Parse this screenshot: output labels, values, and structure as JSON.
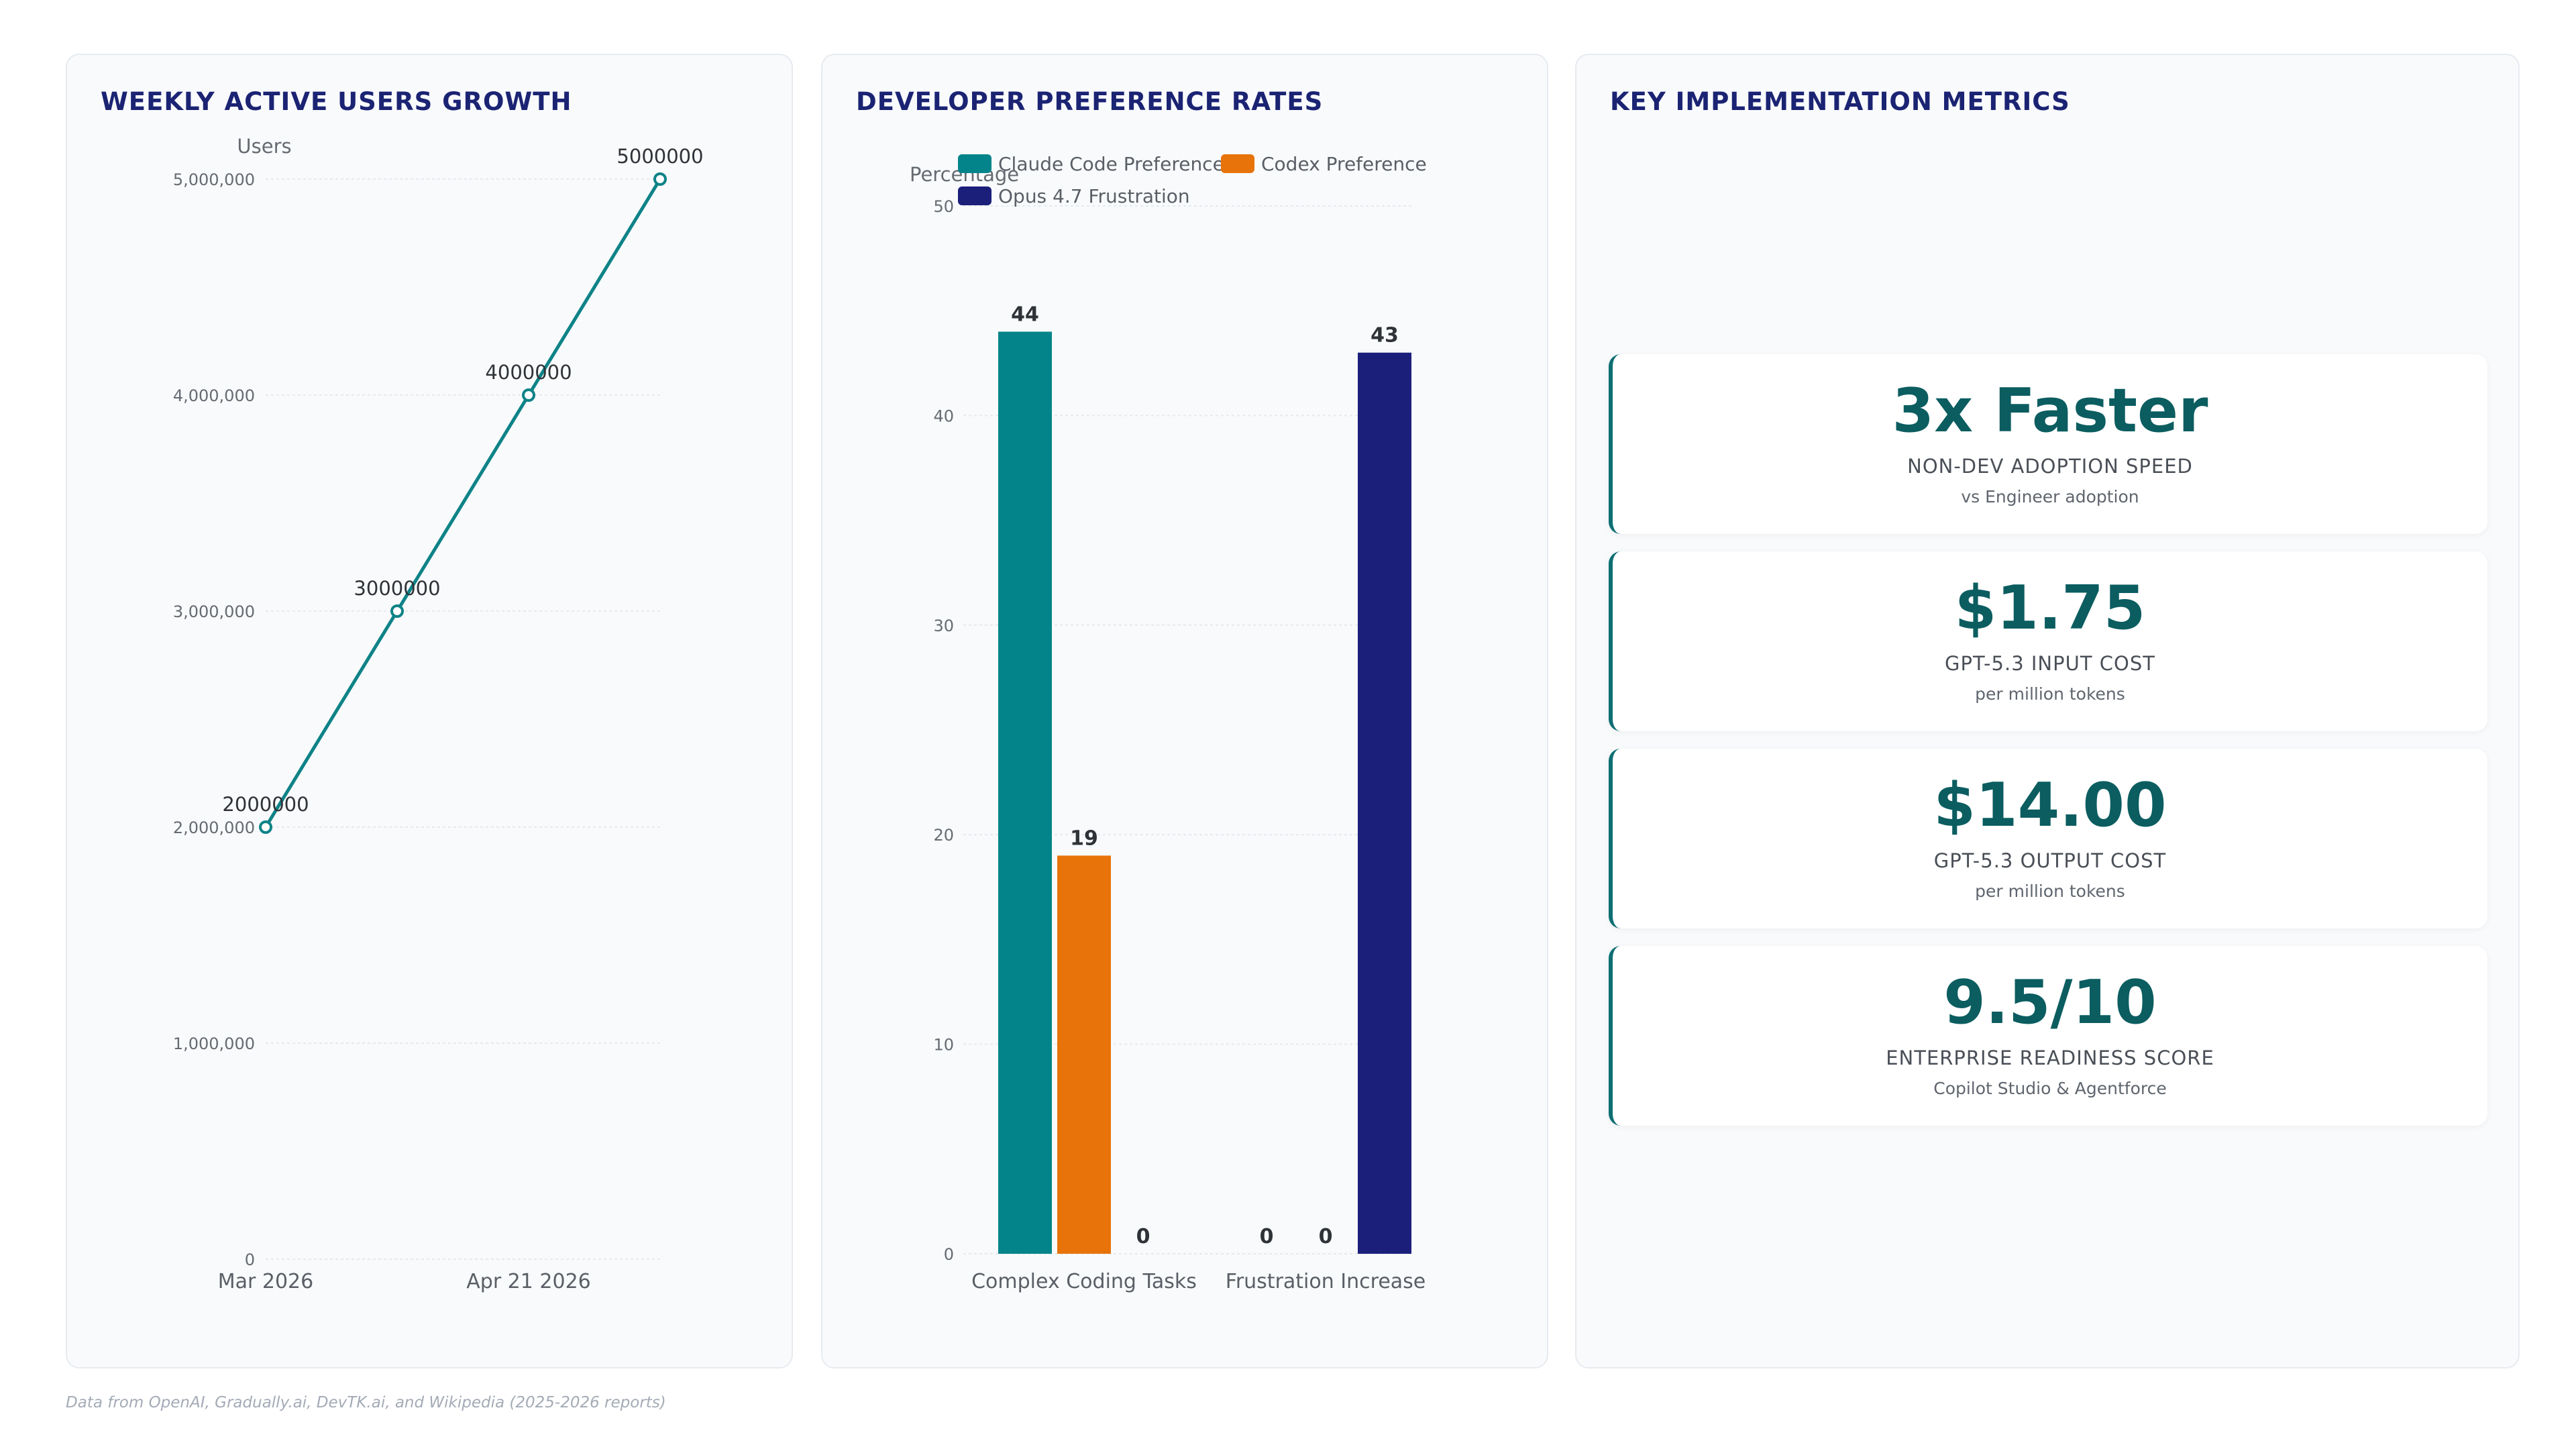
{
  "charts": {
    "wau": {
      "title": "WEEKLY ACTIVE USERS GROWTH"
    },
    "pref": {
      "title": "DEVELOPER PREFERENCE RATES"
    }
  },
  "chart_data": [
    {
      "type": "line",
      "title": "WEEKLY ACTIVE USERS GROWTH",
      "ylabel": "Users",
      "xlabel": "",
      "ylim": [
        0,
        5000000
      ],
      "yticks": [
        0,
        1000000,
        2000000,
        3000000,
        4000000,
        5000000
      ],
      "ytick_labels": [
        "0",
        "1,000,000",
        "2,000,000",
        "3,000,000",
        "4,000,000",
        "5,000,000"
      ],
      "x_tick_labels": [
        "Mar 2026",
        "Apr 21 2026"
      ],
      "series": [
        {
          "values": [
            2000000,
            3000000,
            4000000,
            5000000
          ],
          "point_labels": [
            "2000000",
            "3000000",
            "4000000",
            "5000000"
          ]
        }
      ],
      "grid": true,
      "color": "#0e8387"
    },
    {
      "type": "bar",
      "title": "DEVELOPER PREFERENCE RATES",
      "ylabel": "Percentage",
      "xlabel": "",
      "ylim": [
        0,
        50
      ],
      "yticks": [
        0,
        10,
        20,
        30,
        40,
        50
      ],
      "categories": [
        "Complex Coding Tasks",
        "Frustration Increase"
      ],
      "series": [
        {
          "name": "Claude Code Preference",
          "values": [
            44,
            0
          ],
          "color": "#03848a"
        },
        {
          "name": "Codex Preference",
          "values": [
            19,
            0
          ],
          "color": "#e8730a"
        },
        {
          "name": "Opus 4.7 Frustration",
          "values": [
            0,
            43
          ],
          "color": "#1b1f7a"
        }
      ],
      "legend": "top",
      "grid": true
    }
  ],
  "metrics": {
    "title": "KEY IMPLEMENTATION METRICS",
    "items": [
      {
        "value": "3x Faster",
        "label": "NON-DEV ADOPTION SPEED",
        "sub": "vs Engineer adoption"
      },
      {
        "value": "$1.75",
        "label": "GPT-5.3 INPUT COST",
        "sub": "per million tokens"
      },
      {
        "value": "$14.00",
        "label": "GPT-5.3 OUTPUT COST",
        "sub": "per million tokens"
      },
      {
        "value": "9.5/10",
        "label": "ENTERPRISE READINESS SCORE",
        "sub": "Copilot Studio & Agentforce"
      }
    ]
  },
  "footnote": "Data from OpenAI, Gradually.ai, DevTK.ai, and Wikipedia (2025-2026 reports)"
}
